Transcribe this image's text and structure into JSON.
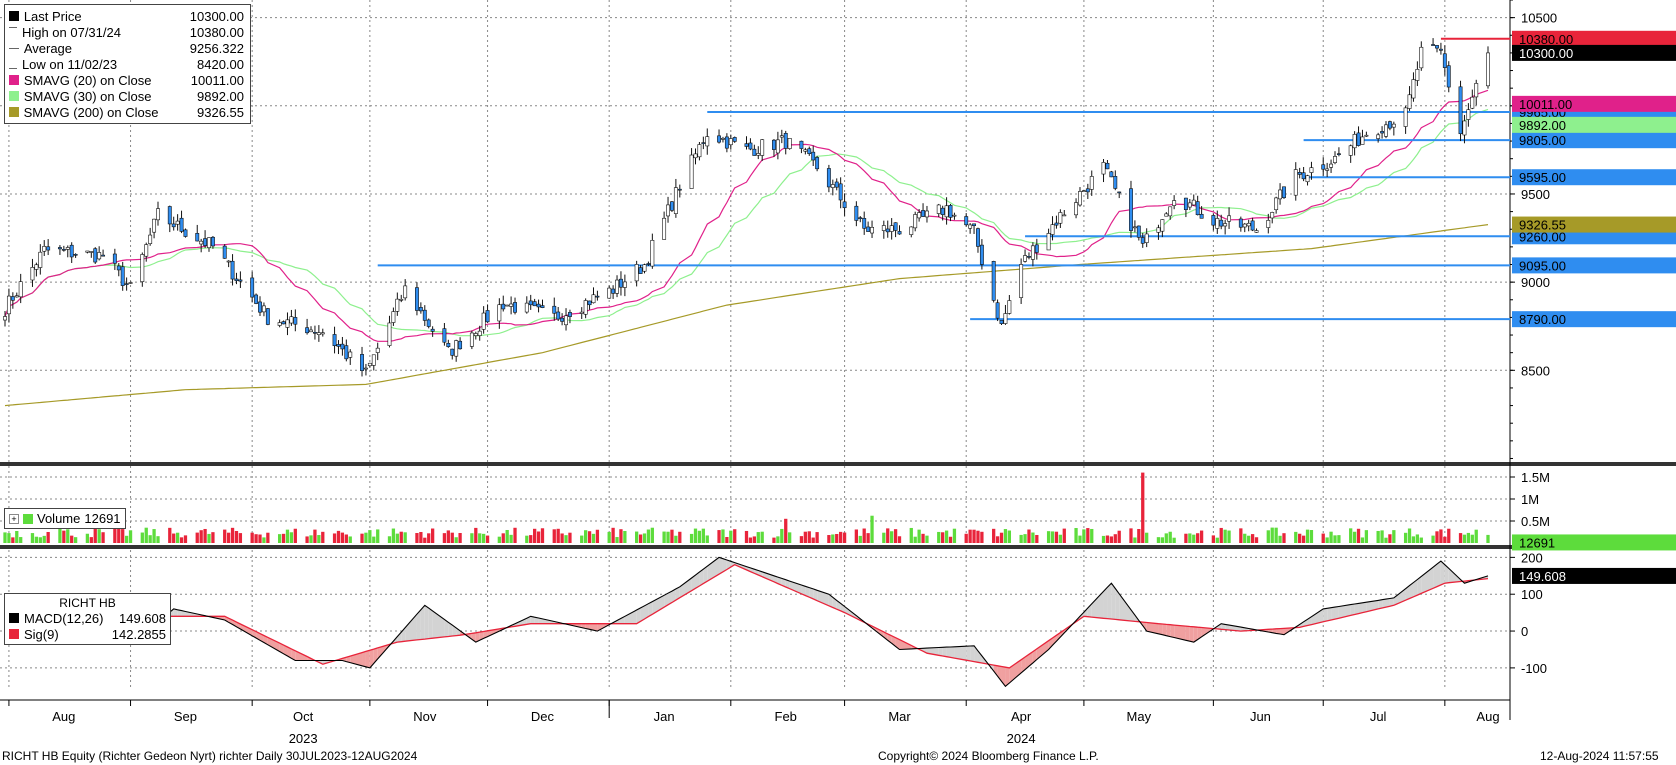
{
  "colors": {
    "up": "#ffffff",
    "down": "#2f8df0",
    "candle_stroke": "#111111",
    "sma20": "#e0218a",
    "sma30": "#8ef08e",
    "sma200": "#a69a28",
    "level_line": "#2f8df0",
    "high_line": "#e8243a",
    "vol_up": "#5ddc3c",
    "vol_down": "#e8243a",
    "macd_line": "#000000",
    "sig_line": "#e8243a",
    "fill_pos": "#d3d3d3",
    "fill_neg": "#f0a0a0"
  },
  "legend_price": [
    {
      "icon": "black-square-icon",
      "label": "Last Price",
      "value": "10300.00",
      "color": "#000000"
    },
    {
      "icon": "high-marker-icon",
      "label": "High on 07/31/24",
      "value": "10380.00",
      "color": "#666666"
    },
    {
      "icon": "average-marker-icon",
      "label": "Average",
      "value": "9256.322",
      "color": "#666666"
    },
    {
      "icon": "low-marker-icon",
      "label": "Low on 11/02/23",
      "value": "8420.00",
      "color": "#666666"
    },
    {
      "icon": "pink-square-icon",
      "label": "SMAVG (20)  on Close",
      "value": "10011.00",
      "color": "#e0218a"
    },
    {
      "icon": "lightgreen-square-icon",
      "label": "SMAVG (30)  on Close",
      "value": "9892.00",
      "color": "#8ef08e"
    },
    {
      "icon": "olive-square-icon",
      "label": "SMAVG (200)  on Close",
      "value": "9326.55",
      "color": "#a69a28"
    }
  ],
  "legend_volume": {
    "label": "Volume",
    "value": "12691"
  },
  "legend_macd": {
    "title": "RICHT HB",
    "rows": [
      {
        "label": "MACD(12,26)",
        "value": "149.608",
        "color": "#000000"
      },
      {
        "label": "Sig(9)",
        "value": "142.2855",
        "color": "#e8243a"
      }
    ]
  },
  "chart_data": [
    {
      "type": "candlestick",
      "panel": "price",
      "yticks": [
        8500,
        9000,
        9500,
        10000,
        10500
      ],
      "ylim": [
        7980,
        10600
      ],
      "horizontal_levels": [
        {
          "label": "9965.00",
          "value": 9965,
          "from": "2024-01-26"
        },
        {
          "label": "9805.00",
          "value": 9805,
          "from": "2024-06-26"
        },
        {
          "label": "9595.00",
          "value": 9595,
          "from": "2024-06-26"
        },
        {
          "label": "9260.00",
          "value": 9260,
          "from": "2024-04-16"
        },
        {
          "label": "9095.00",
          "value": 9095,
          "from": "2023-11-03"
        },
        {
          "label": "8790.00",
          "value": 8790,
          "from": "2024-04-02"
        }
      ],
      "high_level": {
        "label": "10380.00",
        "value": 10380,
        "from": "2024-07-31"
      },
      "right_labels": [
        {
          "label": "10300.00",
          "value": 10300,
          "series": "last"
        },
        {
          "label": "10011.00",
          "value": 10011,
          "series": "sma20"
        },
        {
          "label": "9892.00",
          "value": 9892,
          "series": "sma30"
        },
        {
          "label": "9326.55",
          "value": 9326.55,
          "series": "sma200"
        }
      ],
      "close_anchors": [
        [
          "2023-07-31",
          8850
        ],
        [
          "2023-08-10",
          9180
        ],
        [
          "2023-08-25",
          9150
        ],
        [
          "2023-09-01",
          8960
        ],
        [
          "2023-09-08",
          9380
        ],
        [
          "2023-09-22",
          9200
        ],
        [
          "2023-10-06",
          8800
        ],
        [
          "2023-10-20",
          8720
        ],
        [
          "2023-10-31",
          8480
        ],
        [
          "2023-11-10",
          8960
        ],
        [
          "2023-11-21",
          8600
        ],
        [
          "2023-12-05",
          8880
        ],
        [
          "2023-12-18",
          8800
        ],
        [
          "2024-01-02",
          8960
        ],
        [
          "2024-01-10",
          9100
        ],
        [
          "2024-01-19",
          9550
        ],
        [
          "2024-01-26",
          9850
        ],
        [
          "2024-02-05",
          9750
        ],
        [
          "2024-02-15",
          9800
        ],
        [
          "2024-02-23",
          9650
        ],
        [
          "2024-03-06",
          9300
        ],
        [
          "2024-03-15",
          9300
        ],
        [
          "2024-03-27",
          9420
        ],
        [
          "2024-04-03",
          9280
        ],
        [
          "2024-04-10",
          8750
        ],
        [
          "2024-04-15",
          9100
        ],
        [
          "2024-04-24",
          9350
        ],
        [
          "2024-05-06",
          9650
        ],
        [
          "2024-05-16",
          9200
        ],
        [
          "2024-05-24",
          9500
        ],
        [
          "2024-06-03",
          9350
        ],
        [
          "2024-06-14",
          9300
        ],
        [
          "2024-06-24",
          9600
        ],
        [
          "2024-07-04",
          9700
        ],
        [
          "2024-07-12",
          9850
        ],
        [
          "2024-07-22",
          9950
        ],
        [
          "2024-07-26",
          10300
        ],
        [
          "2024-07-31",
          10300
        ],
        [
          "2024-08-05",
          9850
        ],
        [
          "2024-08-12",
          10300
        ]
      ],
      "sma200_anchors": [
        [
          "2023-07-31",
          8300
        ],
        [
          "2023-09-15",
          8390
        ],
        [
          "2023-10-31",
          8420
        ],
        [
          "2023-12-15",
          8600
        ],
        [
          "2024-01-31",
          8870
        ],
        [
          "2024-03-15",
          9020
        ],
        [
          "2024-04-30",
          9100
        ],
        [
          "2024-06-28",
          9190
        ],
        [
          "2024-08-12",
          9326.55
        ]
      ]
    },
    {
      "type": "bar",
      "panel": "volume",
      "series_name": "Volume",
      "yticks": [
        {
          "label": "1.5M",
          "value": 1500000
        },
        {
          "label": "1M",
          "value": 1000000
        },
        {
          "label": "0.5M",
          "value": 500000
        }
      ],
      "last_value": 12691,
      "last_label": "12691",
      "spikes": [
        [
          "2024-05-16",
          1600000
        ],
        [
          "2024-02-15",
          550000
        ],
        [
          "2024-03-08",
          620000
        ],
        [
          "2023-08-14",
          500000
        ]
      ]
    },
    {
      "type": "line",
      "panel": "macd",
      "yticks": [
        200,
        100,
        0,
        -100
      ],
      "ylim": [
        -160,
        220
      ],
      "last_macd": 149.608,
      "last_sig": 142.2855,
      "last_label": "149.608",
      "macd_anchors": [
        [
          "2023-07-31",
          20
        ],
        [
          "2023-08-10",
          70
        ],
        [
          "2023-08-25",
          30
        ],
        [
          "2023-09-04",
          -10
        ],
        [
          "2023-09-12",
          60
        ],
        [
          "2023-09-25",
          30
        ],
        [
          "2023-10-13",
          -80
        ],
        [
          "2023-10-25",
          -80
        ],
        [
          "2023-11-01",
          -100
        ],
        [
          "2023-11-15",
          70
        ],
        [
          "2023-11-28",
          -30
        ],
        [
          "2023-12-12",
          40
        ],
        [
          "2023-12-29",
          0
        ],
        [
          "2024-01-19",
          120
        ],
        [
          "2024-01-29",
          200
        ],
        [
          "2024-02-12",
          150
        ],
        [
          "2024-02-26",
          100
        ],
        [
          "2024-03-15",
          -50
        ],
        [
          "2024-04-03",
          -40
        ],
        [
          "2024-04-11",
          -150
        ],
        [
          "2024-04-22",
          -50
        ],
        [
          "2024-05-08",
          130
        ],
        [
          "2024-05-17",
          0
        ],
        [
          "2024-05-29",
          -30
        ],
        [
          "2024-06-05",
          20
        ],
        [
          "2024-06-21",
          -10
        ],
        [
          "2024-07-01",
          60
        ],
        [
          "2024-07-19",
          90
        ],
        [
          "2024-07-31",
          190
        ],
        [
          "2024-08-06",
          130
        ],
        [
          "2024-08-12",
          149.608
        ]
      ],
      "sig_anchors": [
        [
          "2023-07-31",
          20
        ],
        [
          "2023-08-20",
          60
        ],
        [
          "2023-09-05",
          40
        ],
        [
          "2023-09-25",
          40
        ],
        [
          "2023-10-20",
          -90
        ],
        [
          "2023-11-08",
          -30
        ],
        [
          "2023-11-25",
          -10
        ],
        [
          "2023-12-12",
          20
        ],
        [
          "2024-01-08",
          20
        ],
        [
          "2024-02-02",
          180
        ],
        [
          "2024-03-01",
          50
        ],
        [
          "2024-03-22",
          -60
        ],
        [
          "2024-04-12",
          -100
        ],
        [
          "2024-05-01",
          40
        ],
        [
          "2024-05-20",
          20
        ],
        [
          "2024-06-10",
          0
        ],
        [
          "2024-06-25",
          10
        ],
        [
          "2024-07-19",
          70
        ],
        [
          "2024-08-01",
          130
        ],
        [
          "2024-08-12",
          142.2855
        ]
      ]
    }
  ],
  "x_axis": {
    "start": "2023-07-31",
    "end": "2024-08-12",
    "ticks": [
      {
        "label": "Aug",
        "date": "2023-08-15"
      },
      {
        "label": "Sep",
        "date": "2023-09-15"
      },
      {
        "label": "Oct",
        "date": "2023-10-15"
      },
      {
        "label": "Nov",
        "date": "2023-11-15"
      },
      {
        "label": "Dec",
        "date": "2023-12-15"
      },
      {
        "label": "Jan",
        "date": "2024-01-15"
      },
      {
        "label": "Feb",
        "date": "2024-02-15"
      },
      {
        "label": "Mar",
        "date": "2024-03-15"
      },
      {
        "label": "Apr",
        "date": "2024-04-15"
      },
      {
        "label": "May",
        "date": "2024-05-15"
      },
      {
        "label": "Jun",
        "date": "2024-06-15"
      },
      {
        "label": "Jul",
        "date": "2024-07-15"
      },
      {
        "label": "Aug",
        "date": "2024-08-12"
      }
    ],
    "year_labels": [
      {
        "label": "2023",
        "date": "2023-10-15"
      },
      {
        "label": "2024",
        "date": "2024-04-15"
      }
    ]
  },
  "footer": {
    "left": "RICHT HB Equity (Richter Gedeon Nyrt) richter  Daily 30JUL2023-12AUG2024",
    "center": "Copyright© 2024 Bloomberg Finance L.P.",
    "right": "12-Aug-2024 11:57:55"
  }
}
